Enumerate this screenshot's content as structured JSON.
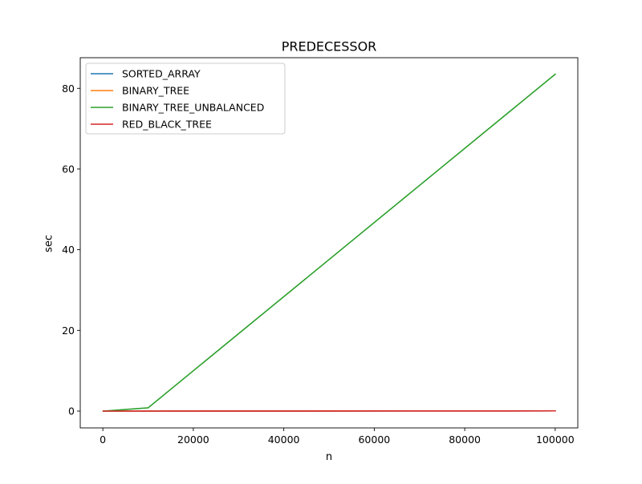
{
  "chart_data": {
    "type": "line",
    "title": "PREDECESSOR",
    "xlabel": "n",
    "ylabel": "sec",
    "xlim": [
      -4995,
      104995
    ],
    "ylim": [
      -4.17,
      87.6
    ],
    "xticks": [
      0,
      20000,
      40000,
      60000,
      80000,
      100000
    ],
    "yticks": [
      0,
      20,
      40,
      60,
      80
    ],
    "grid": false,
    "legend_position": "top-left",
    "x": [
      100,
      10000,
      100000
    ],
    "series": [
      {
        "name": "SORTED_ARRAY",
        "color": "#1f77b4",
        "values": [
          0.0,
          0.0,
          0.05
        ]
      },
      {
        "name": "BINARY_TREE",
        "color": "#ff7f0e",
        "values": [
          0.0,
          0.0,
          0.05
        ]
      },
      {
        "name": "BINARY_TREE_UNBALANCED",
        "color": "#2ca02c",
        "values": [
          0.0,
          0.8,
          83.5
        ]
      },
      {
        "name": "RED_BLACK_TREE",
        "color": "#d62728",
        "values": [
          0.0,
          0.0,
          0.05
        ]
      }
    ]
  }
}
